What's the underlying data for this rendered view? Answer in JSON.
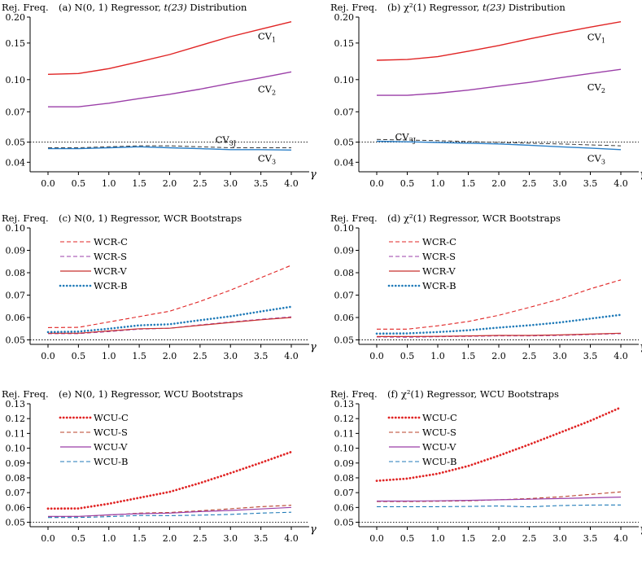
{
  "chart_data": [
    {
      "id": "a",
      "type": "line",
      "ylabel": "Rej. Freq.",
      "title_prefix": "(a) ",
      "title_regressor": "N(0, 1)",
      "title_rest": " Regressor, ",
      "title_dist": "t(23)",
      "title_suffix": " Distribution",
      "xlabel": "γ",
      "x": [
        0.0,
        0.5,
        1.0,
        1.5,
        2.0,
        2.5,
        3.0,
        3.5,
        4.0
      ],
      "xticks": [
        "0.0",
        "0.5",
        "1.0",
        "1.5",
        "2.0",
        "2.5",
        "3.0",
        "3.5",
        "4.0"
      ],
      "ylim": [
        0.036,
        0.2
      ],
      "yscale": "log",
      "yticks": [
        0.04,
        0.05,
        0.07,
        0.1,
        0.15,
        0.2
      ],
      "ytick_labels": [
        "0.04",
        "0.05",
        "0.07",
        "0.10",
        "0.15",
        "0.20"
      ],
      "reference_line": 0.05,
      "series": [
        {
          "name": "CV1",
          "label_main": "CV",
          "label_sub": "1",
          "color": "#e02424",
          "style": "solid",
          "width": 1.4,
          "values": [
            0.106,
            0.107,
            0.113,
            0.122,
            0.132,
            0.146,
            0.161,
            0.175,
            0.19
          ],
          "label_at": [
            3.45,
            0.162
          ]
        },
        {
          "name": "CV2",
          "label_main": "CV",
          "label_sub": "2",
          "color": "#9b3fa8",
          "style": "solid",
          "width": 1.4,
          "values": [
            0.074,
            0.074,
            0.077,
            0.081,
            0.085,
            0.09,
            0.096,
            0.102,
            0.109
          ],
          "label_at": [
            3.45,
            0.09
          ]
        },
        {
          "name": "CV3J",
          "label_main": "CV",
          "label_sub": "3J",
          "color": "#3a3a3a",
          "style": "dashed",
          "width": 1.0,
          "values": [
            0.047,
            0.047,
            0.0475,
            0.048,
            0.048,
            0.0475,
            0.047,
            0.047,
            0.047
          ],
          "label_at": [
            2.75,
            0.0515
          ]
        },
        {
          "name": "CV3",
          "label_main": "CV",
          "label_sub": "3",
          "color": "#2a7fc8",
          "style": "solid",
          "width": 1.4,
          "values": [
            0.0465,
            0.0465,
            0.047,
            0.0475,
            0.047,
            0.0465,
            0.046,
            0.046,
            0.0458
          ],
          "label_at": [
            3.45,
            0.0418
          ]
        }
      ]
    },
    {
      "id": "b",
      "type": "line",
      "ylabel": "Rej. Freq.",
      "title_prefix": "(b) ",
      "title_regressor": "χ²(1)",
      "title_rest": " Regressor, ",
      "title_dist": "t(23)",
      "title_suffix": " Distribution",
      "xlabel": "γ",
      "x": [
        0.0,
        0.5,
        1.0,
        1.5,
        2.0,
        2.5,
        3.0,
        3.5,
        4.0
      ],
      "xticks": [
        "0.0",
        "0.5",
        "1.0",
        "1.5",
        "2.0",
        "2.5",
        "3.0",
        "3.5",
        "4.0"
      ],
      "ylim": [
        0.036,
        0.2
      ],
      "yscale": "log",
      "yticks": [
        0.04,
        0.05,
        0.07,
        0.1,
        0.15,
        0.2
      ],
      "ytick_labels": [
        "0.04",
        "0.05",
        "0.07",
        "0.10",
        "0.15",
        "0.20"
      ],
      "reference_line": 0.05,
      "series": [
        {
          "name": "CV1",
          "label_main": "CV",
          "label_sub": "1",
          "color": "#e02424",
          "style": "solid",
          "width": 1.4,
          "values": [
            0.124,
            0.125,
            0.129,
            0.137,
            0.146,
            0.157,
            0.168,
            0.179,
            0.19
          ],
          "label_at": [
            3.45,
            0.16
          ]
        },
        {
          "name": "CV2",
          "label_main": "CV",
          "label_sub": "2",
          "color": "#9b3fa8",
          "style": "solid",
          "width": 1.4,
          "values": [
            0.084,
            0.084,
            0.086,
            0.089,
            0.093,
            0.097,
            0.102,
            0.107,
            0.112
          ],
          "label_at": [
            3.45,
            0.092
          ]
        },
        {
          "name": "CV3J",
          "label_main": "CV",
          "label_sub": "3J",
          "color": "#3a3a3a",
          "style": "dashed",
          "width": 1.0,
          "values": [
            0.0515,
            0.0512,
            0.0508,
            0.0503,
            0.0498,
            0.0494,
            0.049,
            0.0485,
            0.048
          ],
          "label_at": [
            0.3,
            0.053
          ]
        },
        {
          "name": "CV3",
          "label_main": "CV",
          "label_sub": "3",
          "color": "#2a7fc8",
          "style": "solid",
          "width": 1.4,
          "values": [
            0.0505,
            0.0502,
            0.0498,
            0.0494,
            0.049,
            0.0483,
            0.0475,
            0.0468,
            0.046
          ],
          "label_at": [
            3.45,
            0.0418
          ]
        }
      ]
    },
    {
      "id": "c",
      "type": "line",
      "ylabel": "Rej. Freq.",
      "title_prefix": "(c) ",
      "title_regressor": "N(0, 1)",
      "title_rest": " Regressor, WCR Bootstraps",
      "title_dist": "",
      "title_suffix": "",
      "xlabel": "γ",
      "x": [
        0.0,
        0.5,
        1.0,
        1.5,
        2.0,
        2.5,
        3.0,
        3.5,
        4.0
      ],
      "xticks": [
        "0.0",
        "0.5",
        "1.0",
        "1.5",
        "2.0",
        "2.5",
        "3.0",
        "3.5",
        "4.0"
      ],
      "ylim": [
        0.048,
        0.1
      ],
      "yscale": "linear",
      "yticks": [
        0.05,
        0.06,
        0.07,
        0.08,
        0.09,
        0.1
      ],
      "ytick_labels": [
        "0.05",
        "0.06",
        "0.07",
        "0.08",
        "0.09",
        "0.10"
      ],
      "reference_line": 0.05,
      "legend": "top-left",
      "series": [
        {
          "name": "WCR-C",
          "color": "#e02424",
          "style": "dashed",
          "width": 1.1,
          "values": [
            0.0555,
            0.0556,
            0.058,
            0.0604,
            0.0628,
            0.0672,
            0.0722,
            0.0778,
            0.0833
          ]
        },
        {
          "name": "WCR-S",
          "color": "#9b3fa8",
          "style": "dashed",
          "width": 1.1,
          "values": [
            0.0528,
            0.0528,
            0.0537,
            0.0548,
            0.0552,
            0.0567,
            0.058,
            0.0592,
            0.0603
          ]
        },
        {
          "name": "WCR-V",
          "color": "#c8302e",
          "style": "solid",
          "width": 1.2,
          "values": [
            0.053,
            0.053,
            0.054,
            0.055,
            0.0552,
            0.0565,
            0.0578,
            0.059,
            0.06
          ]
        },
        {
          "name": "WCR-B",
          "color": "#1f7ab8",
          "style": "dotted",
          "width": 2.6,
          "values": [
            0.0535,
            0.0537,
            0.055,
            0.0565,
            0.057,
            0.0588,
            0.0605,
            0.0627,
            0.0648
          ]
        }
      ]
    },
    {
      "id": "d",
      "type": "line",
      "ylabel": "Rej. Freq.",
      "title_prefix": "(d) ",
      "title_regressor": "χ²(1)",
      "title_rest": " Regressor, WCR Bootstraps",
      "title_dist": "",
      "title_suffix": "",
      "xlabel": "γ",
      "x": [
        0.0,
        0.5,
        1.0,
        1.5,
        2.0,
        2.5,
        3.0,
        3.5,
        4.0
      ],
      "xticks": [
        "0.0",
        "0.5",
        "1.0",
        "1.5",
        "2.0",
        "2.5",
        "3.0",
        "3.5",
        "4.0"
      ],
      "ylim": [
        0.048,
        0.1
      ],
      "yscale": "linear",
      "yticks": [
        0.05,
        0.06,
        0.07,
        0.08,
        0.09,
        0.1
      ],
      "ytick_labels": [
        "0.05",
        "0.06",
        "0.07",
        "0.08",
        "0.09",
        "0.10"
      ],
      "reference_line": 0.05,
      "legend": "top-left",
      "series": [
        {
          "name": "WCR-C",
          "color": "#e02424",
          "style": "dashed",
          "width": 1.1,
          "values": [
            0.0548,
            0.0548,
            0.0563,
            0.0582,
            0.061,
            0.0645,
            0.0682,
            0.0728,
            0.0768
          ]
        },
        {
          "name": "WCR-S",
          "color": "#9b3fa8",
          "style": "dashed",
          "width": 1.1,
          "values": [
            0.0513,
            0.0512,
            0.0514,
            0.0516,
            0.0518,
            0.0518,
            0.052,
            0.0524,
            0.0528
          ]
        },
        {
          "name": "WCR-V",
          "color": "#c8302e",
          "style": "solid",
          "width": 1.2,
          "values": [
            0.0515,
            0.0515,
            0.0516,
            0.0518,
            0.052,
            0.052,
            0.0522,
            0.0526,
            0.053
          ]
        },
        {
          "name": "WCR-B",
          "color": "#1f7ab8",
          "style": "dotted",
          "width": 2.6,
          "values": [
            0.0528,
            0.0529,
            0.0535,
            0.0543,
            0.0555,
            0.0565,
            0.0578,
            0.0595,
            0.0612
          ]
        }
      ]
    },
    {
      "id": "e",
      "type": "line",
      "ylabel": "Rej. Freq.",
      "title_prefix": "(e) ",
      "title_regressor": "N(0, 1)",
      "title_rest": " Regressor, WCU Bootstraps",
      "title_dist": "",
      "title_suffix": "",
      "xlabel": "γ",
      "x": [
        0.0,
        0.5,
        1.0,
        1.5,
        2.0,
        2.5,
        3.0,
        3.5,
        4.0
      ],
      "xticks": [
        "0.0",
        "0.5",
        "1.0",
        "1.5",
        "2.0",
        "2.5",
        "3.0",
        "3.5",
        "4.0"
      ],
      "ylim": [
        0.047,
        0.13
      ],
      "yscale": "linear",
      "yticks": [
        0.05,
        0.06,
        0.07,
        0.08,
        0.09,
        0.1,
        0.11,
        0.12,
        0.13
      ],
      "ytick_labels": [
        "0.05",
        "0.06",
        "0.07",
        "0.08",
        "0.09",
        "0.10",
        "0.11",
        "0.12",
        "0.13"
      ],
      "reference_line": 0.05,
      "legend": "top-left",
      "series": [
        {
          "name": "WCU-C",
          "color": "#e02424",
          "style": "dotted",
          "width": 2.8,
          "values": [
            0.0592,
            0.0593,
            0.0625,
            0.0665,
            0.0705,
            0.0765,
            0.0832,
            0.0902,
            0.0975
          ]
        },
        {
          "name": "WCU-S",
          "color": "#b8412a",
          "style": "dashed",
          "width": 1.1,
          "values": [
            0.0538,
            0.0539,
            0.0548,
            0.0562,
            0.0566,
            0.0578,
            0.0591,
            0.0605,
            0.0615
          ]
        },
        {
          "name": "WCU-V",
          "color": "#9b3fa8",
          "style": "solid",
          "width": 1.2,
          "values": [
            0.054,
            0.054,
            0.055,
            0.0558,
            0.0562,
            0.0572,
            0.058,
            0.059,
            0.06
          ]
        },
        {
          "name": "WCU-B",
          "color": "#1f7ab8",
          "style": "dashed",
          "width": 1.1,
          "values": [
            0.0532,
            0.0532,
            0.0538,
            0.0546,
            0.0545,
            0.0548,
            0.0553,
            0.0562,
            0.0568
          ]
        }
      ]
    },
    {
      "id": "f",
      "type": "line",
      "ylabel": "Rej. Freq.",
      "title_prefix": "(f) ",
      "title_regressor": "χ²(1)",
      "title_rest": " Regressor, WCU Bootstraps",
      "title_dist": "",
      "title_suffix": "",
      "xlabel": "γ",
      "x": [
        0.0,
        0.5,
        1.0,
        1.5,
        2.0,
        2.5,
        3.0,
        3.5,
        4.0
      ],
      "xticks": [
        "0.0",
        "0.5",
        "1.0",
        "1.5",
        "2.0",
        "2.5",
        "3.0",
        "3.5",
        "4.0"
      ],
      "ylim": [
        0.047,
        0.13
      ],
      "yscale": "linear",
      "yticks": [
        0.05,
        0.06,
        0.07,
        0.08,
        0.09,
        0.1,
        0.11,
        0.12,
        0.13
      ],
      "ytick_labels": [
        "0.05",
        "0.06",
        "0.07",
        "0.08",
        "0.09",
        "0.10",
        "0.11",
        "0.12",
        "0.13"
      ],
      "reference_line": 0.05,
      "legend": "top-left",
      "series": [
        {
          "name": "WCU-C",
          "color": "#e02424",
          "style": "dotted",
          "width": 2.8,
          "values": [
            0.078,
            0.0795,
            0.0828,
            0.088,
            0.095,
            0.1025,
            0.1105,
            0.1185,
            0.1275
          ]
        },
        {
          "name": "WCU-S",
          "color": "#b8412a",
          "style": "dashed",
          "width": 1.1,
          "values": [
            0.064,
            0.064,
            0.0642,
            0.0645,
            0.0652,
            0.066,
            0.0672,
            0.0688,
            0.0705
          ]
        },
        {
          "name": "WCU-V",
          "color": "#9b3fa8",
          "style": "solid",
          "width": 1.2,
          "values": [
            0.0643,
            0.0643,
            0.0645,
            0.0648,
            0.0652,
            0.0656,
            0.066,
            0.0665,
            0.067
          ]
        },
        {
          "name": "WCU-B",
          "color": "#1f7ab8",
          "style": "dashed",
          "width": 1.1,
          "values": [
            0.0605,
            0.0605,
            0.0605,
            0.0607,
            0.061,
            0.0604,
            0.0613,
            0.0616,
            0.0617
          ]
        }
      ]
    }
  ]
}
